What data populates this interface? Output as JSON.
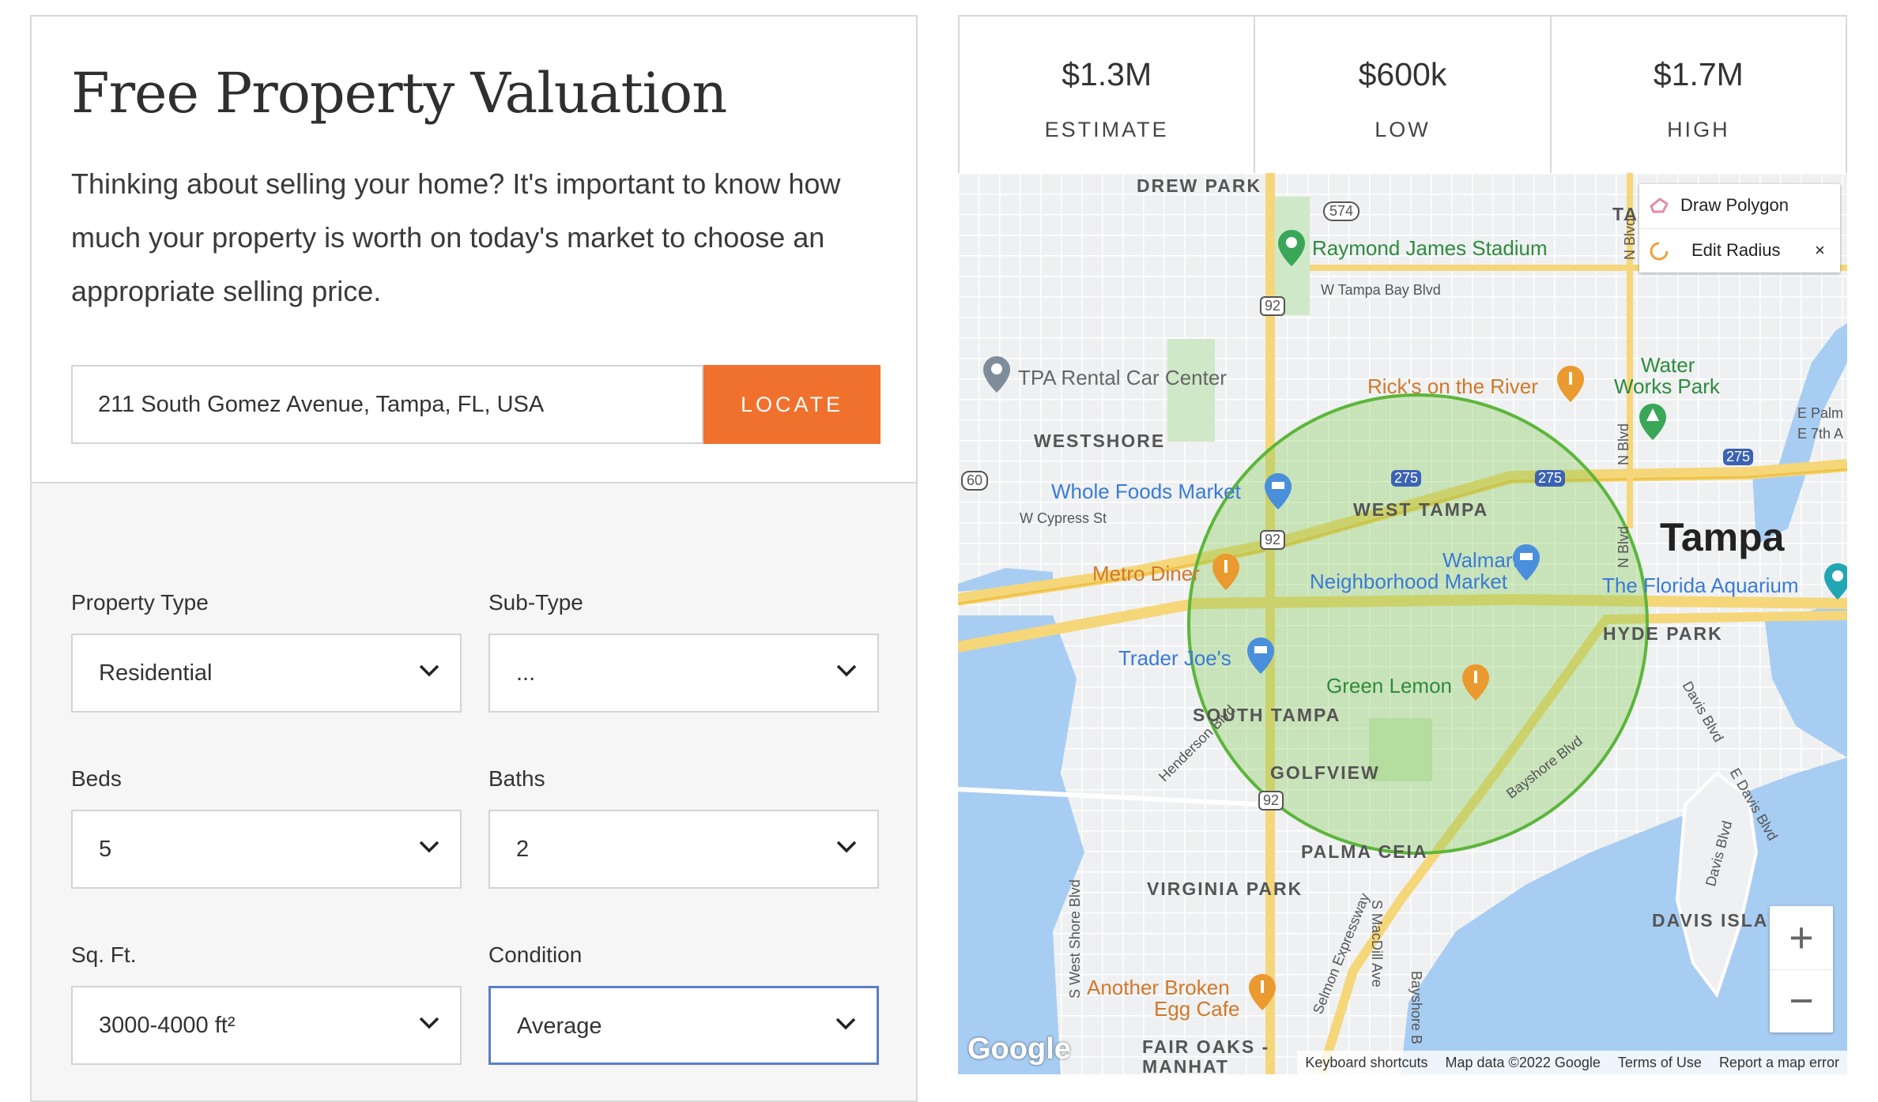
{
  "valuation": {
    "title": "Free Property Valuation",
    "intro": "Thinking about selling your home? It's important to know how much your property is worth on today's market to choose an appropriate selling price.",
    "address_value": "211 South Gomez Avenue, Tampa, FL, USA",
    "locate_label": "LOCATE",
    "accent_color": "#f0712e"
  },
  "form": {
    "property_type": {
      "label": "Property Type",
      "value": "Residential"
    },
    "sub_type": {
      "label": "Sub-Type",
      "value": "..."
    },
    "beds": {
      "label": "Beds",
      "value": "5"
    },
    "baths": {
      "label": "Baths",
      "value": "2"
    },
    "sqft": {
      "label": "Sq. Ft.",
      "value": "3000-4000 ft²"
    },
    "condition": {
      "label": "Condition",
      "value": "Average"
    }
  },
  "stats": [
    {
      "value": "$1.3M",
      "label": "ESTIMATE"
    },
    {
      "value": "$600k",
      "label": "LOW"
    },
    {
      "value": "$1.7M",
      "label": "HIGH"
    }
  ],
  "map": {
    "draw_polygon_label": "Draw Polygon",
    "edit_radius_label": "Edit Radius",
    "close_symbol": "×",
    "zoom_in": "+",
    "zoom_out": "−",
    "google_logo": "Google",
    "attribution": {
      "shortcuts": "Keyboard shortcuts",
      "map_data": "Map data ©2022 Google",
      "terms": "Terms of Use",
      "report": "Report a map error"
    },
    "labels": {
      "drew_park": "DREW PARK",
      "westshore": "WESTSHORE",
      "west_tampa": "WEST TAMPA",
      "south_tampa": "SOUTH TAMPA",
      "golfview": "GOLFVIEW",
      "palma_ceia": "PALMA CEIA",
      "virginia_park": "VIRGINIA PARK",
      "hyde_park": "HYDE PARK",
      "davis_isla": "DAVIS ISLA",
      "fair_oaks": "FAIR OAKS -",
      "manhat": "MANHAT",
      "tampa": "Tampa",
      "raymond_james": "Raymond James Stadium",
      "tpa_rental": "TPA Rental Car Center",
      "ricks": "Rick's on the River",
      "water_works_1": "Water",
      "water_works_2": "Works Park",
      "whole_foods": "Whole Foods Market",
      "metro_diner": "Metro Diner",
      "walmart_1": "Walmart",
      "walmart_2": "Neighborhood Market",
      "florida_aquarium": "The Florida Aquarium",
      "trader_joes": "Trader Joe's",
      "green_lemon": "Green Lemon",
      "another_broken_1": "Another Broken",
      "another_broken_2": "Egg Cafe",
      "w_tampa_bay_blvd": "W Tampa Bay Blvd",
      "w_cypress_st": "W Cypress St",
      "henderson_blvd": "Henderson Blvd",
      "bayshore_blvd": "Bayshore Blvd",
      "selmon_expressway": "Selmon Expressway",
      "s_west_shore_blvd": "S West Shore Blvd",
      "s_macdill_ave": "S MacDill Ave",
      "bayshore_b": "Bayshore B",
      "n_blvd": "N Blvd",
      "n_blvd_2": "N Blvd",
      "n_blvd_3": "N Blvd",
      "davis_blvd": "Davis Blvd",
      "e_davis_blvd": "E Davis Blvd",
      "davis_blvd_2": "Davis Blvd",
      "e_palm": "E Palm",
      "e_7th_a": "E 7th A",
      "ta": "TA",
      "shield_574": "574",
      "shield_92a": "92",
      "shield_92b": "92",
      "shield_92c": "92",
      "shield_60": "60",
      "shield_275a": "275",
      "shield_275b": "275",
      "shield_275c": "275"
    }
  }
}
